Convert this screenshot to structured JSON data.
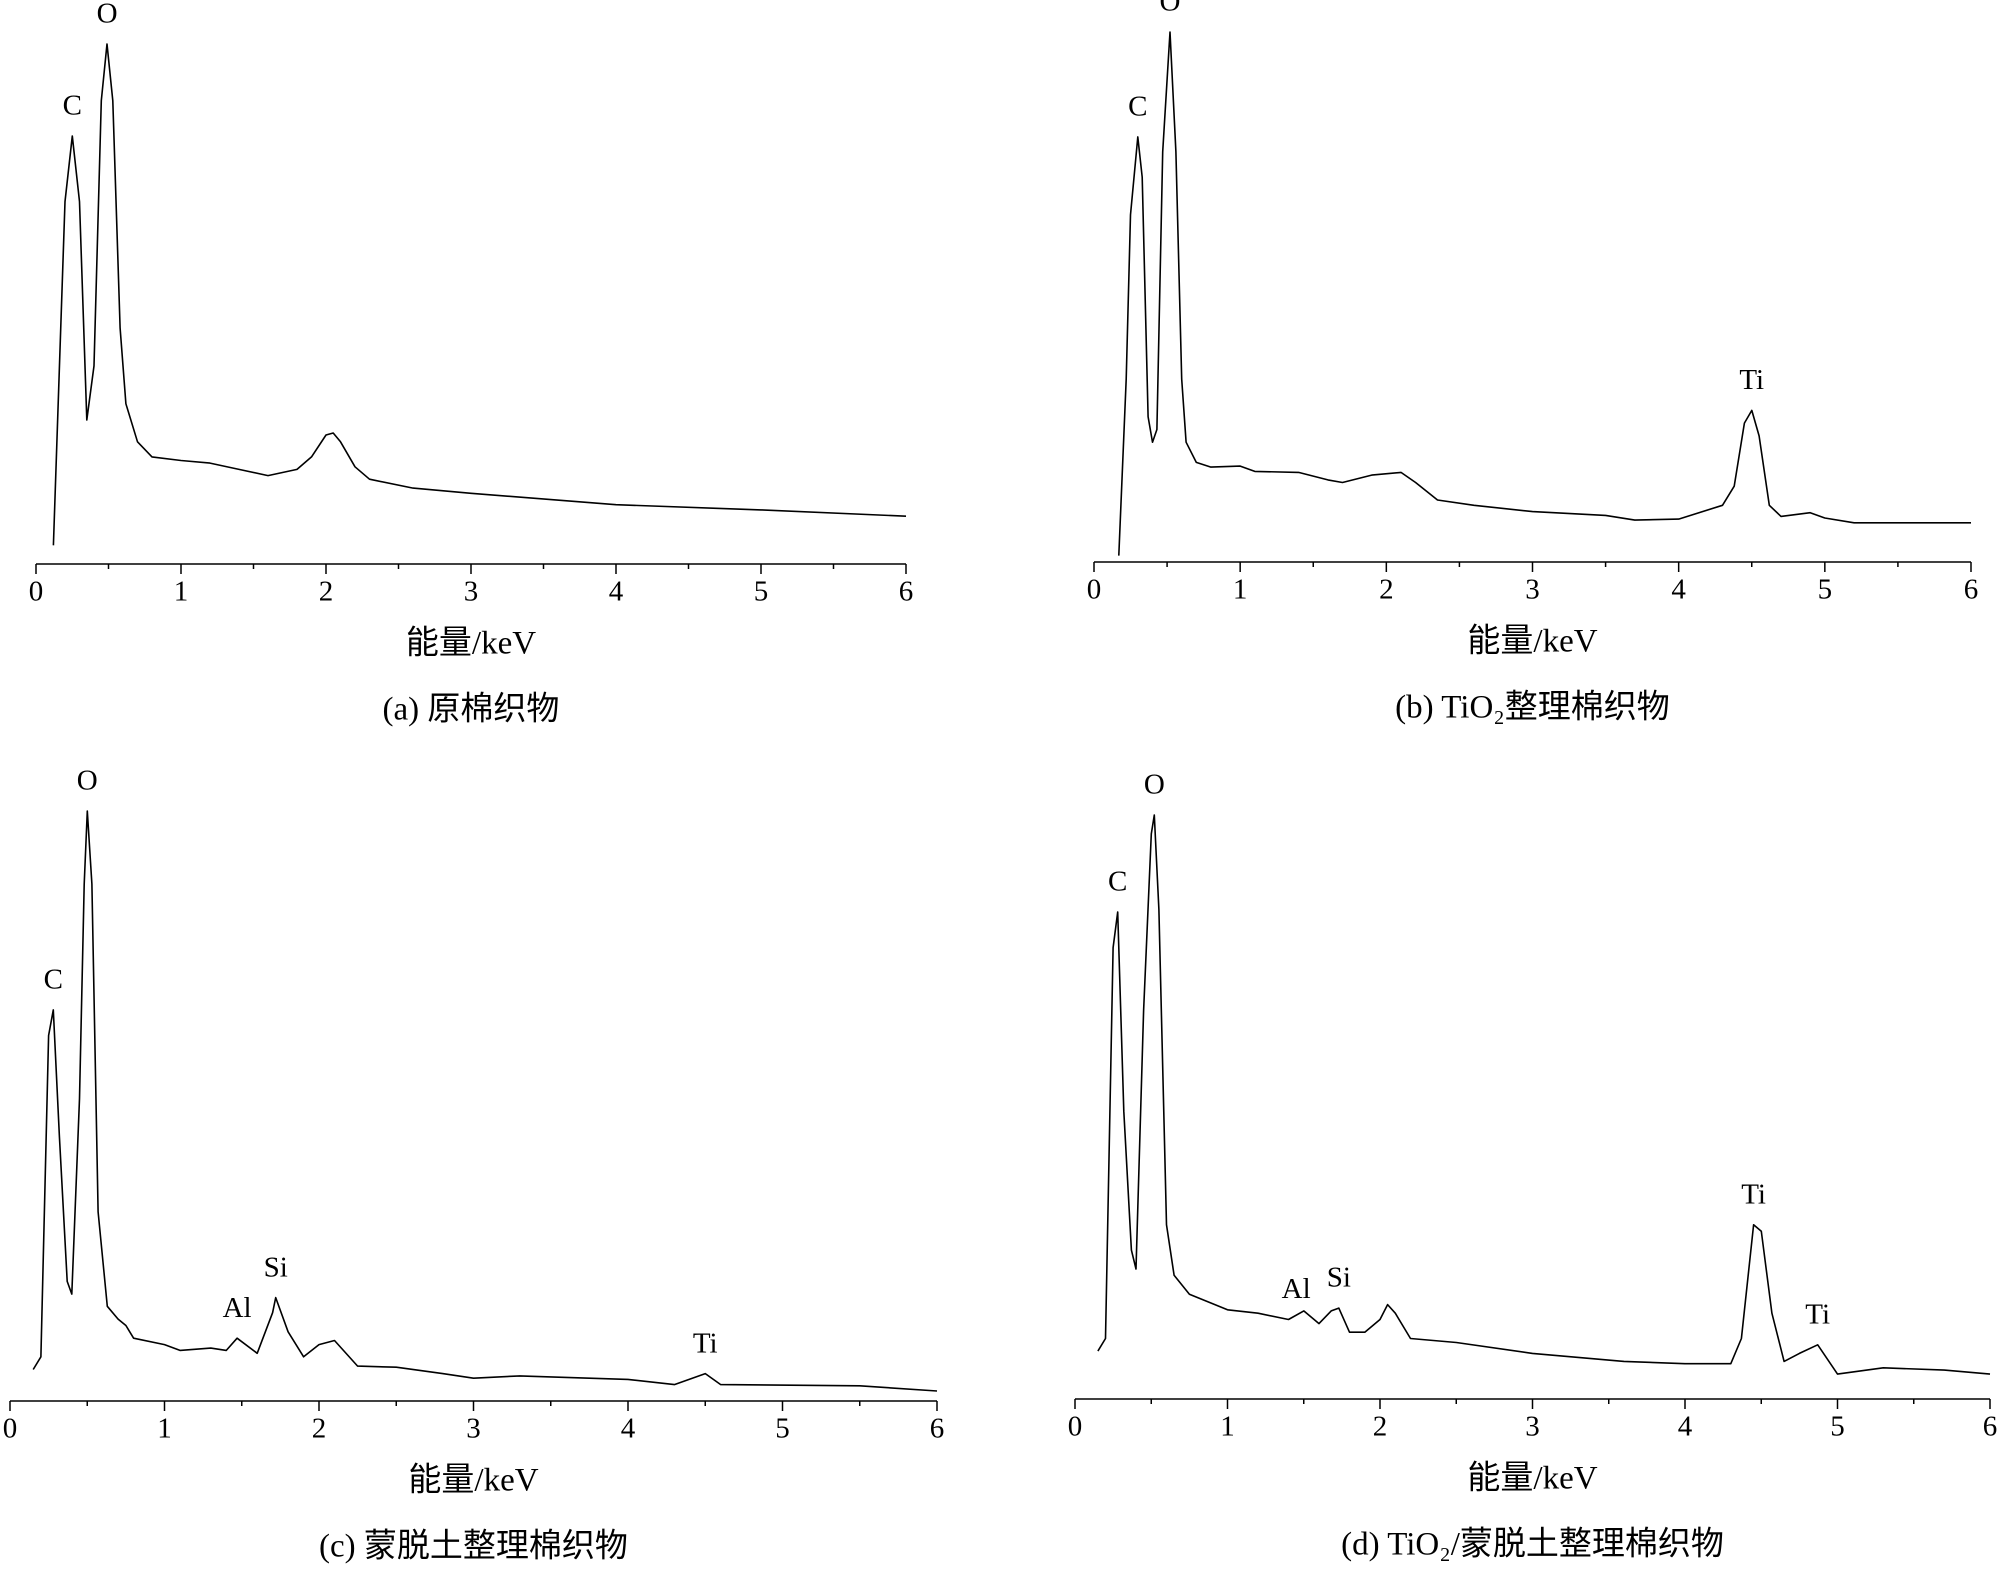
{
  "chart_data": [
    {
      "type": "line",
      "title": "(a) 原棉织物",
      "xlabel": "能量/keV",
      "xlim": [
        0,
        6
      ],
      "xticks": [
        0,
        1,
        2,
        3,
        4,
        5,
        6
      ],
      "ylim": [
        0,
        100
      ],
      "color": "#000000",
      "x": [
        0.12,
        0.2,
        0.25,
        0.3,
        0.35,
        0.4,
        0.45,
        0.49,
        0.53,
        0.58,
        0.62,
        0.7,
        0.8,
        1.0,
        1.2,
        1.4,
        1.6,
        1.8,
        1.9,
        2.0,
        2.05,
        2.1,
        2.2,
        2.3,
        2.6,
        3.0,
        4.0,
        5.0,
        6.0
      ],
      "values": [
        3.6,
        69.7,
        82.3,
        69.7,
        27.7,
        38.1,
        89.1,
        100,
        89.1,
        45.4,
        30.8,
        23.5,
        20.6,
        19.9,
        19.4,
        18.2,
        17.0,
        18.2,
        20.6,
        24.8,
        25.2,
        23.5,
        18.7,
        16.3,
        14.6,
        13.6,
        11.4,
        10.4,
        9.2
      ],
      "annotations": [
        {
          "text": "C",
          "x": 0.25,
          "y": 82.3
        },
        {
          "text": "O",
          "x": 0.49,
          "y": 100
        }
      ]
    },
    {
      "type": "line",
      "title": "(b) TiO₂整理棉织物",
      "xlabel": "能量/keV",
      "xlim": [
        0,
        6
      ],
      "xticks": [
        0,
        1,
        2,
        3,
        4,
        5,
        6
      ],
      "ylim": [
        0,
        100
      ],
      "color": "#000000",
      "x": [
        0.17,
        0.22,
        0.25,
        0.3,
        0.33,
        0.37,
        0.4,
        0.43,
        0.47,
        0.52,
        0.56,
        0.6,
        0.63,
        0.7,
        0.8,
        1.0,
        1.1,
        1.4,
        1.6,
        1.7,
        1.9,
        2.1,
        2.2,
        2.35,
        2.6,
        3.0,
        3.5,
        3.7,
        4.0,
        4.3,
        4.38,
        4.45,
        4.5,
        4.55,
        4.62,
        4.7,
        4.9,
        5.0,
        5.2,
        6.0
      ],
      "values": [
        1.2,
        34.5,
        65.5,
        80.2,
        72.6,
        27.4,
        22.6,
        25.0,
        77.4,
        100,
        77.4,
        34.5,
        22.6,
        18.8,
        17.9,
        18.1,
        17.1,
        16.9,
        15.5,
        15.0,
        16.4,
        16.9,
        15.0,
        11.7,
        10.7,
        9.5,
        8.8,
        7.9,
        8.1,
        10.7,
        14.3,
        26.2,
        28.6,
        23.8,
        10.7,
        8.6,
        9.3,
        8.3,
        7.4,
        7.4
      ],
      "annotations": [
        {
          "text": "C",
          "x": 0.3,
          "y": 80.2
        },
        {
          "text": "O",
          "x": 0.52,
          "y": 100
        },
        {
          "text": "Ti",
          "x": 4.5,
          "y": 28.6
        }
      ]
    },
    {
      "type": "line",
      "title": "(c) 蒙脱土整理棉织物",
      "xlabel": "能量/keV",
      "xlim": [
        0,
        6
      ],
      "xticks": [
        0,
        1,
        2,
        3,
        4,
        5,
        6
      ],
      "ylim": [
        0,
        100
      ],
      "color": "#000000",
      "x": [
        0.15,
        0.2,
        0.25,
        0.28,
        0.32,
        0.37,
        0.4,
        0.45,
        0.48,
        0.5,
        0.53,
        0.57,
        0.63,
        0.7,
        0.75,
        0.8,
        1.0,
        1.1,
        1.3,
        1.4,
        1.47,
        1.6,
        1.7,
        1.72,
        1.8,
        1.9,
        2.0,
        2.1,
        2.25,
        2.5,
        2.8,
        3.0,
        3.3,
        4.0,
        4.3,
        4.5,
        4.6,
        5.5,
        6.0
      ],
      "values": [
        3.7,
        5.9,
        61.3,
        65.7,
        43.9,
        18.9,
        16.7,
        50.4,
        87.4,
        100,
        87.4,
        30.9,
        14.6,
        12.4,
        11.3,
        9.1,
        8.0,
        7.0,
        7.4,
        7.0,
        9.1,
        6.5,
        13.5,
        16.1,
        10.2,
        5.9,
        8.0,
        8.7,
        4.3,
        4.1,
        3.0,
        2.2,
        2.6,
        2.0,
        1.1,
        3.0,
        1.1,
        0.9,
        0
      ],
      "annotations": [
        {
          "text": "C",
          "x": 0.28,
          "y": 65.7
        },
        {
          "text": "O",
          "x": 0.5,
          "y": 100
        },
        {
          "text": "Al",
          "x": 1.47,
          "y": 9.1
        },
        {
          "text": "Si",
          "x": 1.72,
          "y": 16.1
        },
        {
          "text": "Ti",
          "x": 4.5,
          "y": 3.0
        }
      ]
    },
    {
      "type": "line",
      "title": "(d) TiO₂/蒙脱土整理棉织物",
      "xlabel": "能量/keV",
      "xlim": [
        0,
        6
      ],
      "xticks": [
        0,
        1,
        2,
        3,
        4,
        5,
        6
      ],
      "ylim": [
        0,
        100
      ],
      "color": "#000000",
      "x": [
        0.15,
        0.2,
        0.25,
        0.28,
        0.32,
        0.37,
        0.4,
        0.45,
        0.5,
        0.52,
        0.55,
        0.6,
        0.65,
        0.75,
        1.0,
        1.2,
        1.4,
        1.5,
        1.6,
        1.68,
        1.73,
        1.8,
        1.9,
        2.0,
        2.05,
        2.1,
        2.2,
        2.5,
        3.0,
        3.3,
        3.6,
        4.0,
        4.3,
        4.37,
        4.45,
        4.5,
        4.57,
        4.65,
        4.75,
        4.87,
        5.0,
        5.3,
        5.7,
        6.0
      ],
      "values": [
        6.6,
        8.8,
        76.9,
        83.1,
        48.4,
        24.2,
        20.9,
        65.9,
        96.7,
        100,
        83.5,
        28.6,
        19.8,
        16.5,
        13.8,
        13.2,
        12.1,
        13.6,
        11.4,
        13.6,
        14.1,
        9.9,
        9.9,
        12.1,
        14.7,
        13.2,
        8.8,
        8.1,
        6.2,
        5.5,
        4.8,
        4.4,
        4.4,
        8.8,
        28.6,
        27.5,
        13.2,
        4.8,
        6.2,
        7.7,
        2.6,
        3.7,
        3.3,
        2.6
      ],
      "annotations": [
        {
          "text": "C",
          "x": 0.28,
          "y": 83.1
        },
        {
          "text": "O",
          "x": 0.52,
          "y": 100
        },
        {
          "text": "Al",
          "x": 1.45,
          "y": 12.1
        },
        {
          "text": "Si",
          "x": 1.73,
          "y": 14.1
        },
        {
          "text": "Ti",
          "x": 4.45,
          "y": 28.6
        },
        {
          "text": "Ti",
          "x": 4.87,
          "y": 7.7
        }
      ]
    }
  ]
}
